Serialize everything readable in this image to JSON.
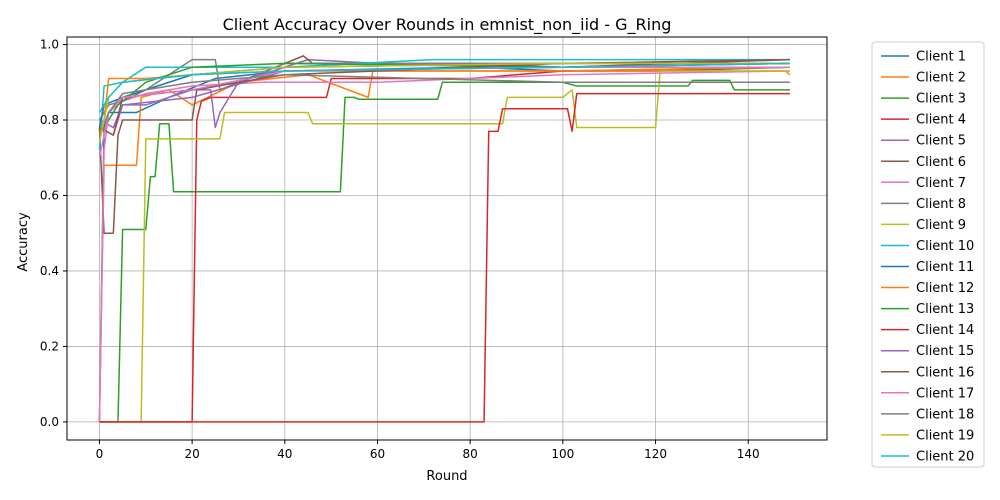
{
  "chart_data": {
    "type": "line",
    "title": "Client Accuracy Over Rounds in emnist_non_iid - G_Ring",
    "xlabel": "Round",
    "ylabel": "Accuracy",
    "xlim": [
      -7,
      157
    ],
    "ylim": [
      -0.048,
      1.02
    ],
    "xticks": [
      0,
      20,
      40,
      60,
      80,
      100,
      120,
      140
    ],
    "yticks": [
      0.0,
      0.2,
      0.4,
      0.6,
      0.8,
      1.0
    ],
    "ytick_labels": [
      "0.0",
      "0.2",
      "0.4",
      "0.6",
      "0.8",
      "1.0"
    ],
    "grid": true,
    "legend_position": "outside-right",
    "series": [
      {
        "name": "Client 1",
        "color": "#1f77b4",
        "points": [
          [
            0,
            0.0
          ],
          [
            1,
            0.78
          ],
          [
            2,
            0.82
          ],
          [
            8,
            0.82
          ],
          [
            15,
            0.86
          ],
          [
            25,
            0.91
          ],
          [
            40,
            0.93
          ],
          [
            80,
            0.94
          ],
          [
            100,
            0.93
          ],
          [
            120,
            0.93
          ],
          [
            149,
            0.94
          ]
        ]
      },
      {
        "name": "Client 2",
        "color": "#ff7f0e",
        "points": [
          [
            0,
            0.0
          ],
          [
            1,
            0.68
          ],
          [
            8,
            0.68
          ],
          [
            9,
            0.86
          ],
          [
            15,
            0.88
          ],
          [
            20,
            0.84
          ],
          [
            30,
            0.9
          ],
          [
            45,
            0.92
          ],
          [
            58,
            0.86
          ],
          [
            59,
            0.93
          ],
          [
            100,
            0.93
          ],
          [
            148,
            0.93
          ],
          [
            149,
            0.92
          ]
        ]
      },
      {
        "name": "Client 3",
        "color": "#2ca02c",
        "points": [
          [
            0,
            0.0
          ],
          [
            4,
            0.0
          ],
          [
            5,
            0.51
          ],
          [
            10,
            0.51
          ],
          [
            11,
            0.65
          ],
          [
            12,
            0.65
          ],
          [
            13,
            0.79
          ],
          [
            15,
            0.79
          ],
          [
            16,
            0.61
          ],
          [
            52,
            0.61
          ],
          [
            53,
            0.86
          ],
          [
            55,
            0.86
          ],
          [
            56,
            0.855
          ],
          [
            73,
            0.855
          ],
          [
            74,
            0.9
          ],
          [
            100,
            0.9
          ],
          [
            103,
            0.89
          ],
          [
            127,
            0.89
          ],
          [
            128,
            0.905
          ],
          [
            136,
            0.905
          ],
          [
            137,
            0.88
          ],
          [
            149,
            0.88
          ]
        ]
      },
      {
        "name": "Client 4",
        "color": "#d62728",
        "points": [
          [
            0,
            0.0
          ],
          [
            20,
            0.0
          ],
          [
            21,
            0.8
          ],
          [
            22,
            0.85
          ],
          [
            24,
            0.86
          ],
          [
            49,
            0.86
          ],
          [
            50,
            0.91
          ],
          [
            80,
            0.91
          ],
          [
            100,
            0.93
          ],
          [
            149,
            0.94
          ]
        ]
      },
      {
        "name": "Client 5",
        "color": "#9467bd",
        "points": [
          [
            0,
            0.8
          ],
          [
            3,
            0.78
          ],
          [
            5,
            0.84
          ],
          [
            10,
            0.84
          ],
          [
            20,
            0.88
          ],
          [
            24,
            0.88
          ],
          [
            25,
            0.78
          ],
          [
            26,
            0.82
          ],
          [
            30,
            0.9
          ],
          [
            45,
            0.96
          ],
          [
            60,
            0.95
          ],
          [
            100,
            0.94
          ],
          [
            149,
            0.95
          ]
        ]
      },
      {
        "name": "Client 6",
        "color": "#8c564b",
        "points": [
          [
            0,
            0.78
          ],
          [
            1,
            0.5
          ],
          [
            3,
            0.5
          ],
          [
            4,
            0.76
          ],
          [
            5,
            0.8
          ],
          [
            20,
            0.8
          ],
          [
            21,
            0.88
          ],
          [
            30,
            0.9
          ],
          [
            44,
            0.97
          ],
          [
            46,
            0.95
          ],
          [
            80,
            0.95
          ],
          [
            100,
            0.94
          ],
          [
            149,
            0.96
          ]
        ]
      },
      {
        "name": "Client 7",
        "color": "#e377c2",
        "points": [
          [
            0,
            0.0
          ],
          [
            1,
            0.72
          ],
          [
            2,
            0.82
          ],
          [
            5,
            0.85
          ],
          [
            10,
            0.87
          ],
          [
            20,
            0.89
          ],
          [
            35,
            0.9
          ],
          [
            60,
            0.9
          ],
          [
            100,
            0.92
          ],
          [
            149,
            0.93
          ]
        ]
      },
      {
        "name": "Client 8",
        "color": "#7f7f7f",
        "points": [
          [
            0,
            0.8
          ],
          [
            2,
            0.84
          ],
          [
            5,
            0.85
          ],
          [
            10,
            0.88
          ],
          [
            20,
            0.96
          ],
          [
            25,
            0.96
          ],
          [
            26,
            0.88
          ],
          [
            40,
            0.95
          ],
          [
            60,
            0.95
          ],
          [
            100,
            0.95
          ],
          [
            149,
            0.95
          ]
        ]
      },
      {
        "name": "Client 9",
        "color": "#bcbd22",
        "points": [
          [
            0,
            0.0
          ],
          [
            9,
            0.0
          ],
          [
            10,
            0.75
          ],
          [
            26,
            0.75
          ],
          [
            27,
            0.82
          ],
          [
            45,
            0.82
          ],
          [
            46,
            0.79
          ],
          [
            87,
            0.79
          ],
          [
            88,
            0.86
          ],
          [
            100,
            0.86
          ],
          [
            102,
            0.88
          ],
          [
            103,
            0.78
          ],
          [
            120,
            0.78
          ],
          [
            121,
            0.93
          ],
          [
            149,
            0.93
          ]
        ]
      },
      {
        "name": "Client 10",
        "color": "#17becf",
        "points": [
          [
            0,
            0.72
          ],
          [
            1,
            0.89
          ],
          [
            5,
            0.9
          ],
          [
            10,
            0.94
          ],
          [
            20,
            0.94
          ],
          [
            40,
            0.94
          ],
          [
            72,
            0.96
          ],
          [
            100,
            0.96
          ],
          [
            149,
            0.96
          ]
        ]
      },
      {
        "name": "Client 11",
        "color": "#1f77b4",
        "points": [
          [
            0,
            0.78
          ],
          [
            1,
            0.84
          ],
          [
            5,
            0.86
          ],
          [
            20,
            0.92
          ],
          [
            40,
            0.94
          ],
          [
            100,
            0.95
          ],
          [
            149,
            0.95
          ]
        ]
      },
      {
        "name": "Client 12",
        "color": "#ff7f0e",
        "points": [
          [
            0,
            0.76
          ],
          [
            1,
            0.8
          ],
          [
            2,
            0.91
          ],
          [
            10,
            0.91
          ],
          [
            20,
            0.92
          ],
          [
            40,
            0.93
          ],
          [
            100,
            0.93
          ],
          [
            149,
            0.94
          ]
        ]
      },
      {
        "name": "Client 13",
        "color": "#2ca02c",
        "points": [
          [
            0,
            0.76
          ],
          [
            2,
            0.8
          ],
          [
            4,
            0.84
          ],
          [
            10,
            0.9
          ],
          [
            20,
            0.94
          ],
          [
            40,
            0.95
          ],
          [
            100,
            0.94
          ],
          [
            149,
            0.95
          ]
        ]
      },
      {
        "name": "Client 14",
        "color": "#d62728",
        "points": [
          [
            0,
            0.0
          ],
          [
            20,
            0.0
          ],
          [
            83,
            0.0
          ],
          [
            84,
            0.77
          ],
          [
            86,
            0.77
          ],
          [
            87,
            0.83
          ],
          [
            101,
            0.83
          ],
          [
            102,
            0.77
          ],
          [
            103,
            0.87
          ],
          [
            149,
            0.87
          ]
        ]
      },
      {
        "name": "Client 15",
        "color": "#9467bd",
        "points": [
          [
            0,
            0.78
          ],
          [
            3,
            0.76
          ],
          [
            5,
            0.84
          ],
          [
            20,
            0.86
          ],
          [
            40,
            0.93
          ],
          [
            100,
            0.94
          ],
          [
            149,
            0.94
          ]
        ]
      },
      {
        "name": "Client 16",
        "color": "#8c564b",
        "points": [
          [
            0,
            0.78
          ],
          [
            3,
            0.76
          ],
          [
            5,
            0.86
          ],
          [
            20,
            0.88
          ],
          [
            40,
            0.92
          ],
          [
            100,
            0.95
          ],
          [
            149,
            0.96
          ]
        ]
      },
      {
        "name": "Client 17",
        "color": "#e377c2",
        "points": [
          [
            0,
            0.7
          ],
          [
            2,
            0.82
          ],
          [
            5,
            0.86
          ],
          [
            20,
            0.88
          ],
          [
            40,
            0.93
          ],
          [
            100,
            0.94
          ],
          [
            149,
            0.94
          ]
        ]
      },
      {
        "name": "Client 18",
        "color": "#7f7f7f",
        "points": [
          [
            0,
            0.76
          ],
          [
            2,
            0.82
          ],
          [
            5,
            0.87
          ],
          [
            20,
            0.9
          ],
          [
            40,
            0.92
          ],
          [
            100,
            0.9
          ],
          [
            149,
            0.9
          ]
        ]
      },
      {
        "name": "Client 19",
        "color": "#bcbd22",
        "points": [
          [
            0,
            0.74
          ],
          [
            2,
            0.86
          ],
          [
            5,
            0.9
          ],
          [
            20,
            0.92
          ],
          [
            40,
            0.94
          ],
          [
            100,
            0.95
          ],
          [
            149,
            0.95
          ]
        ]
      },
      {
        "name": "Client 20",
        "color": "#17becf",
        "points": [
          [
            0,
            0.82
          ],
          [
            2,
            0.86
          ],
          [
            5,
            0.9
          ],
          [
            20,
            0.92
          ],
          [
            40,
            0.93
          ],
          [
            100,
            0.94
          ],
          [
            149,
            0.95
          ]
        ]
      }
    ]
  }
}
